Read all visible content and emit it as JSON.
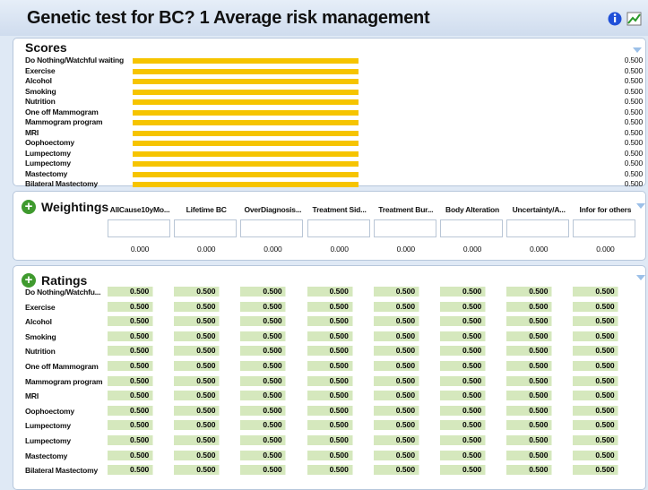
{
  "header": {
    "title": "Genetic test for BC? 1  Average risk management"
  },
  "scores": {
    "title": "Scores",
    "labels": [
      "Do Nothing/Watchful waiting",
      "Exercise",
      "Alcohol",
      "Smoking",
      "Nutrition",
      "One off Mammogram",
      "Mammogram program",
      "MRI",
      "Oophoectomy",
      "Lumpectomy",
      "Lumpectomy",
      "Mastectomy",
      "Bilateral Mastectomy"
    ],
    "values": [
      0.5,
      0.5,
      0.5,
      0.5,
      0.5,
      0.5,
      0.5,
      0.5,
      0.5,
      0.5,
      0.5,
      0.5,
      0.5
    ],
    "value_labels": [
      "0.500",
      "0.500",
      "0.500",
      "0.500",
      "0.500",
      "0.500",
      "0.500",
      "0.500",
      "0.500",
      "0.500",
      "0.500",
      "0.500",
      "0.500"
    ],
    "color": "#f6c400"
  },
  "weightings": {
    "title": "Weightings",
    "columns": [
      "AllCause10yMo...",
      "Lifetime BC",
      "OverDiagnosis...",
      "Treatment Sid...",
      "Treatment Bur...",
      "Body Alteration",
      "Uncertainty/A...",
      "Infor for others"
    ],
    "values": [
      "0.000",
      "0.000",
      "0.000",
      "0.000",
      "0.000",
      "0.000",
      "0.000",
      "0.000"
    ]
  },
  "ratings": {
    "title": "Ratings",
    "rows": [
      {
        "label": "Do Nothing/Watchfu...",
        "cells": [
          "0.500",
          "0.500",
          "0.500",
          "0.500",
          "0.500",
          "0.500",
          "0.500",
          "0.500"
        ]
      },
      {
        "label": "Exercise",
        "cells": [
          "0.500",
          "0.500",
          "0.500",
          "0.500",
          "0.500",
          "0.500",
          "0.500",
          "0.500"
        ]
      },
      {
        "label": "Alcohol",
        "cells": [
          "0.500",
          "0.500",
          "0.500",
          "0.500",
          "0.500",
          "0.500",
          "0.500",
          "0.500"
        ]
      },
      {
        "label": "Smoking",
        "cells": [
          "0.500",
          "0.500",
          "0.500",
          "0.500",
          "0.500",
          "0.500",
          "0.500",
          "0.500"
        ]
      },
      {
        "label": "Nutrition",
        "cells": [
          "0.500",
          "0.500",
          "0.500",
          "0.500",
          "0.500",
          "0.500",
          "0.500",
          "0.500"
        ]
      },
      {
        "label": "One off Mammogram",
        "cells": [
          "0.500",
          "0.500",
          "0.500",
          "0.500",
          "0.500",
          "0.500",
          "0.500",
          "0.500"
        ]
      },
      {
        "label": "Mammogram program",
        "cells": [
          "0.500",
          "0.500",
          "0.500",
          "0.500",
          "0.500",
          "0.500",
          "0.500",
          "0.500"
        ]
      },
      {
        "label": "MRI",
        "cells": [
          "0.500",
          "0.500",
          "0.500",
          "0.500",
          "0.500",
          "0.500",
          "0.500",
          "0.500"
        ]
      },
      {
        "label": "Oophoectomy",
        "cells": [
          "0.500",
          "0.500",
          "0.500",
          "0.500",
          "0.500",
          "0.500",
          "0.500",
          "0.500"
        ]
      },
      {
        "label": "Lumpectomy",
        "cells": [
          "0.500",
          "0.500",
          "0.500",
          "0.500",
          "0.500",
          "0.500",
          "0.500",
          "0.500"
        ]
      },
      {
        "label": "Lumpectomy",
        "cells": [
          "0.500",
          "0.500",
          "0.500",
          "0.500",
          "0.500",
          "0.500",
          "0.500",
          "0.500"
        ]
      },
      {
        "label": "Mastectomy",
        "cells": [
          "0.500",
          "0.500",
          "0.500",
          "0.500",
          "0.500",
          "0.500",
          "0.500",
          "0.500"
        ]
      },
      {
        "label": "Bilateral Mastectomy",
        "cells": [
          "0.500",
          "0.500",
          "0.500",
          "0.500",
          "0.500",
          "0.500",
          "0.500",
          "0.500"
        ]
      }
    ]
  }
}
